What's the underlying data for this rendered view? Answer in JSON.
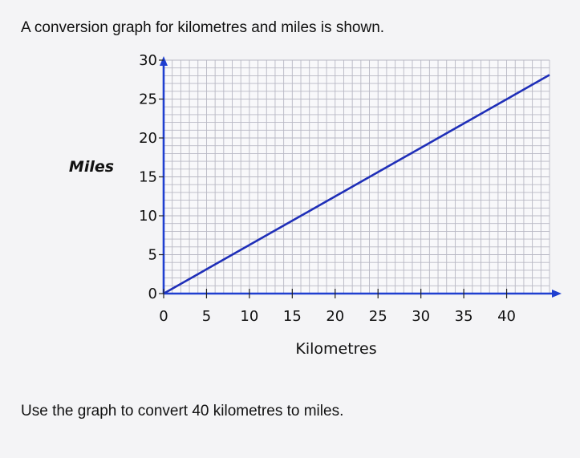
{
  "question_intro": "A conversion graph for kilometres and miles is shown.",
  "question_task": "Use the graph to convert 40 kilometres to miles.",
  "chart_data": {
    "type": "line",
    "title": "",
    "xlabel": "Kilometres",
    "ylabel": "Miles",
    "xlim": [
      0,
      45
    ],
    "ylim": [
      0,
      30
    ],
    "x_ticks": [
      0,
      5,
      10,
      15,
      20,
      25,
      30,
      35,
      40
    ],
    "y_ticks": [
      0,
      5,
      10,
      15,
      20,
      25,
      30
    ],
    "grid": true,
    "minor_grid_step_x": 1,
    "minor_grid_step_y": 1,
    "series": [
      {
        "x": [
          0,
          45
        ],
        "y": [
          0,
          28.1
        ]
      }
    ],
    "colors": {
      "line": "#1f2fb8",
      "axis": "#1f3fd0",
      "grid": "#b8b8c4",
      "plot_background": "#f8f8fa"
    }
  }
}
